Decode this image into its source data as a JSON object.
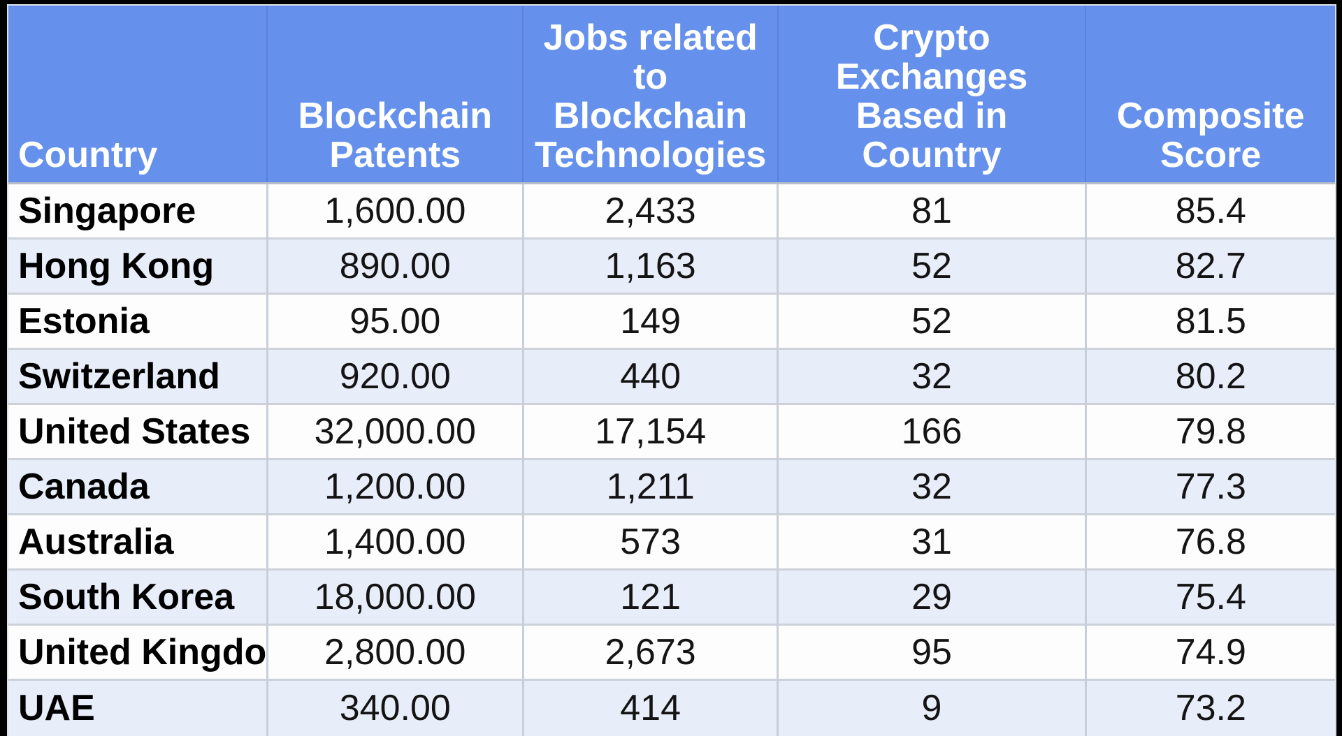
{
  "table": {
    "columns": [
      {
        "label": "Country"
      },
      {
        "label": "Blockchain\nPatents"
      },
      {
        "label": "Jobs related\nto\nBlockchain\nTechnologies"
      },
      {
        "label": "Crypto\nExchanges\nBased in\nCountry"
      },
      {
        "label": "Composite\nScore"
      }
    ],
    "rows": [
      {
        "country": "Singapore",
        "patents": "1,600.00",
        "jobs": "2,433",
        "exchanges": "81",
        "score": "85.4"
      },
      {
        "country": "Hong Kong",
        "patents": "890.00",
        "jobs": "1,163",
        "exchanges": "52",
        "score": "82.7"
      },
      {
        "country": "Estonia",
        "patents": "95.00",
        "jobs": "149",
        "exchanges": "52",
        "score": "81.5"
      },
      {
        "country": "Switzerland",
        "patents": "920.00",
        "jobs": "440",
        "exchanges": "32",
        "score": "80.2"
      },
      {
        "country": "United States",
        "patents": "32,000.00",
        "jobs": "17,154",
        "exchanges": "166",
        "score": "79.8"
      },
      {
        "country": "Canada",
        "patents": "1,200.00",
        "jobs": "1,211",
        "exchanges": "32",
        "score": "77.3"
      },
      {
        "country": "Australia",
        "patents": "1,400.00",
        "jobs": "573",
        "exchanges": "31",
        "score": "76.8"
      },
      {
        "country": "South Korea",
        "patents": "18,000.00",
        "jobs": "121",
        "exchanges": "29",
        "score": "75.4"
      },
      {
        "country": "United Kingdom",
        "patents": "2,800.00",
        "jobs": "2,673",
        "exchanges": "95",
        "score": "74.9"
      },
      {
        "country": "UAE",
        "patents": "340.00",
        "jobs": "414",
        "exchanges": "9",
        "score": "73.2"
      }
    ]
  },
  "colors": {
    "header_background": "#6591ec",
    "header_text": "#ffffff",
    "row_alternate": "#e7edf9",
    "row_default": "#fdfdfd",
    "grid_border": "#c9cfd9",
    "surround": "#000000"
  },
  "chart_data": {
    "type": "table",
    "columns": [
      "Country",
      "Blockchain Patents",
      "Jobs related to Blockchain Technologies",
      "Crypto Exchanges Based in Country",
      "Composite Score"
    ],
    "rows": [
      [
        "Singapore",
        1600.0,
        2433,
        81,
        85.4
      ],
      [
        "Hong Kong",
        890.0,
        1163,
        52,
        82.7
      ],
      [
        "Estonia",
        95.0,
        149,
        52,
        81.5
      ],
      [
        "Switzerland",
        920.0,
        440,
        32,
        80.2
      ],
      [
        "United States",
        32000.0,
        17154,
        166,
        79.8
      ],
      [
        "Canada",
        1200.0,
        1211,
        32,
        77.3
      ],
      [
        "Australia",
        1400.0,
        573,
        31,
        76.8
      ],
      [
        "South Korea",
        18000.0,
        121,
        29,
        75.4
      ],
      [
        "United Kingdom",
        2800.0,
        2673,
        95,
        74.9
      ],
      [
        "UAE",
        340.0,
        414,
        9,
        73.2
      ]
    ]
  }
}
